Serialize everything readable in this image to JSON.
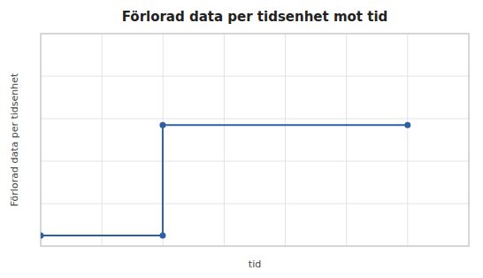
{
  "chart_data": {
    "type": "line",
    "title": "Förlorad data per tidsenhet mot tid",
    "xlabel": "tid",
    "ylabel": "Förlorad data per tidsenhet",
    "x": [
      0.0,
      0.285,
      0.285,
      0.857
    ],
    "series": [
      {
        "values": [
          0.05,
          0.05,
          0.57,
          0.57
        ],
        "color": "#2E5FA3",
        "marker": "circle"
      }
    ],
    "xlim": [
      0,
      1
    ],
    "ylim": [
      0,
      1
    ],
    "xticks": [
      0,
      0.14285714285714285,
      0.2857142857142857,
      0.42857142857142855,
      0.5714285714285714,
      0.7142857142857143,
      0.8571428571428571,
      1
    ],
    "yticks": [
      0,
      0.2,
      0.4,
      0.6,
      0.8,
      1
    ],
    "grid": true,
    "tick_labels": false
  }
}
